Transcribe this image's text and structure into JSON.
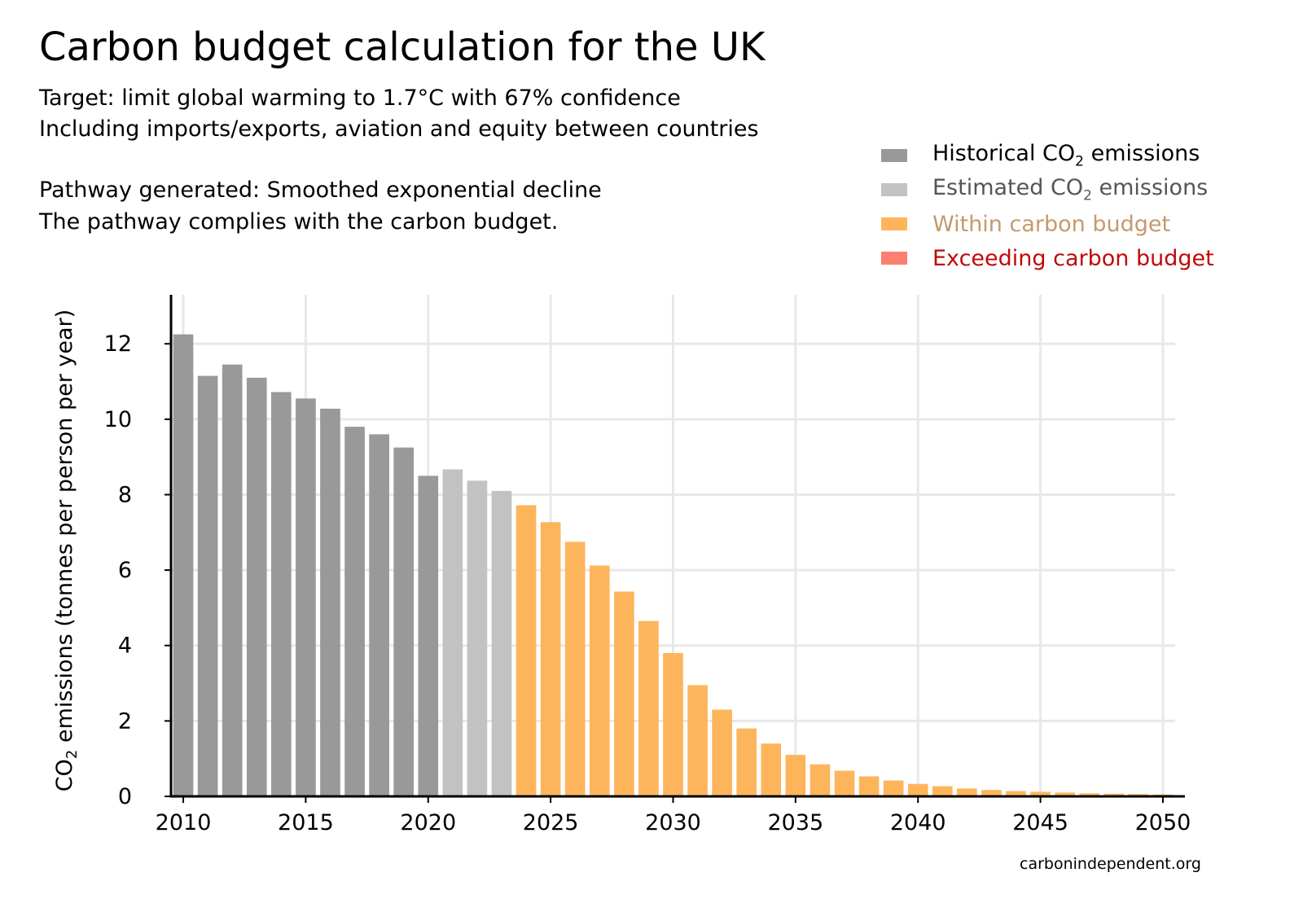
{
  "header": {
    "title": "Carbon budget calculation for the UK",
    "subtitle_line1": "Target: limit global warming to 1.7°C with 67% confidence",
    "subtitle_line2": "Including imports/exports, aviation and equity between countries",
    "subtitle_line3": "Pathway generated: Smoothed exponential decline",
    "subtitle_line4": "The pathway complies with the carbon budget."
  },
  "legend": {
    "placement": "top-right",
    "items": [
      {
        "pre": "Historical CO",
        "sub": "2",
        "post": " emissions",
        "color": "#999999",
        "text_color": "#000000"
      },
      {
        "pre": "Estimated CO",
        "sub": "2",
        "post": " emissions",
        "color": "#c2c2c2",
        "text_color": "#555555"
      },
      {
        "pre": "Within carbon budget",
        "sub": "",
        "post": "",
        "color": "#fdb55c",
        "text_color": "#c49a6c"
      },
      {
        "pre": "Exceeding carbon budget",
        "sub": "",
        "post": "",
        "color": "#fb8072",
        "text_color": "#bf0a0a"
      }
    ]
  },
  "chart_data": {
    "type": "bar",
    "ylabel_pre": "CO",
    "ylabel_sub": "2",
    "ylabel_post": " emissions (tonnes per person per year)",
    "xlabel": "",
    "xlim": [
      2009.5,
      2050.5
    ],
    "ylim": [
      0,
      13.3
    ],
    "x_ticks": [
      2010,
      2015,
      2020,
      2025,
      2030,
      2035,
      2040,
      2045,
      2050
    ],
    "y_ticks": [
      0,
      2,
      4,
      6,
      8,
      10,
      12
    ],
    "grid": true,
    "series": [
      {
        "name": "Historical CO2 emissions",
        "color": "#999999",
        "x": [
          2010,
          2011,
          2012,
          2013,
          2014,
          2015,
          2016,
          2017,
          2018,
          2019,
          2020
        ],
        "values": [
          12.25,
          11.15,
          11.45,
          11.1,
          10.72,
          10.55,
          10.28,
          9.8,
          9.6,
          9.25,
          8.5
        ]
      },
      {
        "name": "Estimated CO2 emissions",
        "color": "#c2c2c2",
        "x": [
          2021,
          2022,
          2023
        ],
        "values": [
          8.67,
          8.37,
          8.1
        ]
      },
      {
        "name": "Within carbon budget",
        "color": "#fdb55c",
        "x": [
          2024,
          2025,
          2026,
          2027,
          2028,
          2029,
          2030,
          2031,
          2032,
          2033,
          2034,
          2035,
          2036,
          2037,
          2038,
          2039,
          2040,
          2041,
          2042,
          2043,
          2044,
          2045,
          2046,
          2047,
          2048,
          2049,
          2050
        ],
        "values": [
          7.72,
          7.27,
          6.75,
          6.12,
          5.43,
          4.65,
          3.8,
          2.95,
          2.3,
          1.8,
          1.4,
          1.1,
          0.85,
          0.68,
          0.53,
          0.42,
          0.33,
          0.27,
          0.21,
          0.17,
          0.14,
          0.12,
          0.1,
          0.08,
          0.07,
          0.06,
          0.05
        ]
      },
      {
        "name": "Exceeding carbon budget",
        "color": "#fb8072",
        "x": [],
        "values": []
      }
    ]
  },
  "footer": {
    "source": "carbonindependent.org"
  }
}
